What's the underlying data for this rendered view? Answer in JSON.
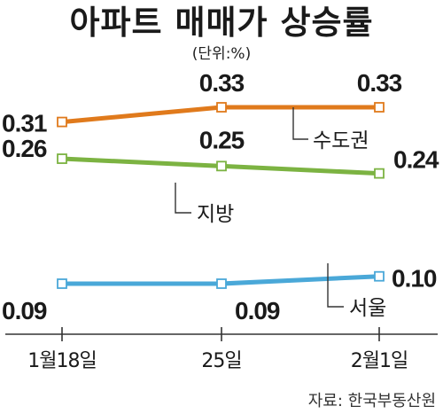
{
  "title": "아파트 매매가 상승률",
  "unit": "(단위:%)",
  "source": "자료: 한국부동산원",
  "chart_data": {
    "type": "line",
    "title": "아파트 매매가 상승률",
    "unit": "(단위:%)",
    "categories": [
      "1월18일",
      "25일",
      "2월1일"
    ],
    "xlabel": "",
    "ylabel": "",
    "ylim": [
      0.05,
      0.36
    ],
    "grid": false,
    "legend": "inline-labels",
    "series": [
      {
        "name": "수도권",
        "values": [
          0.31,
          0.33,
          0.33
        ],
        "value_labels": [
          "0.31",
          "0.33",
          "0.33"
        ],
        "color": "#e07a1c"
      },
      {
        "name": "지방",
        "values": [
          0.26,
          0.25,
          0.24
        ],
        "value_labels": [
          "0.26",
          "0.25",
          "0.24"
        ],
        "color": "#7cb342"
      },
      {
        "name": "서울",
        "values": [
          0.09,
          0.09,
          0.1
        ],
        "value_labels": [
          "0.09",
          "0.09",
          "0.10"
        ],
        "color": "#4aa8d8"
      }
    ]
  }
}
